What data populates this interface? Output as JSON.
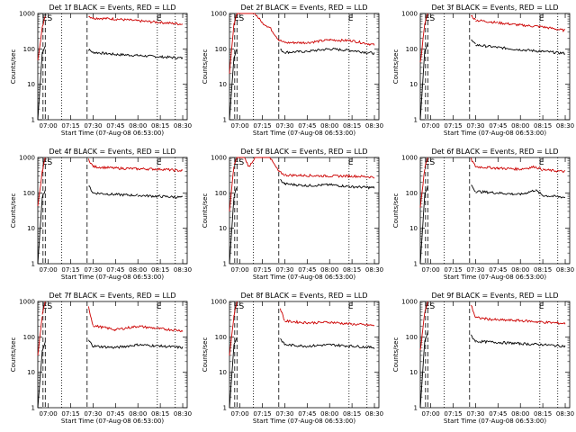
{
  "chart_data": {
    "type": "line",
    "shared": {
      "xlabel": "Start Time (07-Aug-08 06:53:00)",
      "ylabel": "Counts/sec",
      "y_scale": "log",
      "ylim": [
        1,
        1000
      ],
      "xlim": [
        "06:53",
        "08:33"
      ],
      "y_tick_labels": [
        "1",
        "10",
        "100",
        "1000"
      ],
      "x_tick_labels": [
        "07:00",
        "07:15",
        "07:30",
        "07:45",
        "08:00",
        "08:15",
        "08:30"
      ],
      "markers": [
        {
          "label": "ES",
          "time": "06:56:30",
          "style": "dashed"
        },
        {
          "label": "",
          "time": "06:58:00",
          "style": "dashed"
        },
        {
          "label": "",
          "time": "07:09:00",
          "style": "dotted"
        },
        {
          "label": "",
          "time": "07:26:00",
          "style": "dashed"
        },
        {
          "label": "E",
          "time": "08:13:00",
          "style": "dotted"
        },
        {
          "label": "",
          "time": "08:25:00",
          "style": "dotted"
        }
      ],
      "colors": {
        "events": "#000000",
        "lld": "#cc0000"
      }
    },
    "panels": [
      {
        "title": "Det 1f BLACK = Events, RED = LLD",
        "series": [
          {
            "key": "events",
            "time": [
              "06:53",
              "06:56",
              "06:58",
              "07:26",
              "07:27",
              "07:30",
              "07:45",
              "08:00",
              "08:15",
              "08:30"
            ],
            "values": [
              1,
              80,
              120,
              null,
              95,
              80,
              70,
              65,
              60,
              55
            ]
          },
          {
            "key": "lld",
            "time": [
              "06:53",
              "06:56",
              "06:58",
              "07:26",
              "07:27",
              "07:30",
              "07:45",
              "08:00",
              "08:15",
              "08:30"
            ],
            "values": [
              50,
              400,
              900,
              null,
              850,
              750,
              700,
              620,
              560,
              500
            ]
          }
        ]
      },
      {
        "title": "Det 2f BLACK = Events, RED = LLD",
        "series": [
          {
            "key": "events",
            "time": [
              "06:53",
              "06:56",
              "06:58",
              "07:26",
              "07:27",
              "07:30",
              "07:45",
              "08:00",
              "08:15",
              "08:30"
            ],
            "values": [
              1,
              60,
              100,
              null,
              95,
              80,
              85,
              100,
              90,
              75
            ]
          },
          {
            "key": "lld",
            "time": [
              "06:53",
              "06:56",
              "06:58",
              "07:03",
              "07:10",
              "07:15",
              "07:20",
              "07:26",
              "07:30",
              "07:45",
              "08:00",
              "08:15",
              "08:30"
            ],
            "values": [
              20,
              500,
              1000,
              1000,
              1000,
              550,
              400,
              180,
              150,
              150,
              180,
              170,
              130
            ]
          }
        ]
      },
      {
        "title": "Det 3f BLACK = Events, RED = LLD",
        "series": [
          {
            "key": "events",
            "time": [
              "06:53",
              "06:56",
              "06:58",
              "07:26",
              "07:27",
              "07:30",
              "07:45",
              "08:00",
              "08:15",
              "08:30"
            ],
            "values": [
              1,
              90,
              150,
              null,
              180,
              130,
              110,
              95,
              85,
              75
            ]
          },
          {
            "key": "lld",
            "time": [
              "06:53",
              "06:56",
              "06:58",
              "07:26",
              "07:27",
              "07:30",
              "07:45",
              "08:00",
              "08:15",
              "08:30"
            ],
            "values": [
              40,
              500,
              1000,
              null,
              900,
              650,
              550,
              470,
              420,
              330
            ]
          }
        ]
      },
      {
        "title": "Det 4f BLACK = Events, RED = LLD",
        "series": [
          {
            "key": "events",
            "time": [
              "06:53",
              "06:56",
              "06:58",
              "07:26",
              "07:27",
              "07:30",
              "07:45",
              "08:00",
              "08:15",
              "08:30"
            ],
            "values": [
              1,
              80,
              120,
              null,
              160,
              100,
              90,
              85,
              80,
              75
            ]
          },
          {
            "key": "lld",
            "time": [
              "06:53",
              "06:56",
              "06:58",
              "07:26",
              "07:27",
              "07:30",
              "07:45",
              "08:00",
              "08:15",
              "08:30"
            ],
            "values": [
              40,
              400,
              1000,
              null,
              900,
              550,
              500,
              480,
              470,
              420
            ]
          }
        ]
      },
      {
        "title": "Det 5f BLACK = Events, RED = LLD",
        "series": [
          {
            "key": "events",
            "time": [
              "06:53",
              "06:56",
              "06:58",
              "07:26",
              "07:27",
              "07:30",
              "07:45",
              "08:00",
              "08:15",
              "08:30"
            ],
            "values": [
              1,
              80,
              150,
              null,
              230,
              180,
              160,
              170,
              150,
              140
            ]
          },
          {
            "key": "lld",
            "time": [
              "06:53",
              "06:56",
              "06:58",
              "07:03",
              "07:06",
              "07:10",
              "07:20",
              "07:26",
              "07:30",
              "07:45",
              "08:00",
              "08:15",
              "08:30"
            ],
            "values": [
              30,
              600,
              1000,
              1000,
              550,
              1000,
              1000,
              400,
              320,
              310,
              300,
              300,
              280
            ]
          }
        ]
      },
      {
        "title": "Det 6f BLACK = Events, RED = LLD",
        "series": [
          {
            "key": "events",
            "time": [
              "06:53",
              "06:56",
              "06:58",
              "07:26",
              "07:27",
              "07:30",
              "07:45",
              "08:00",
              "08:10",
              "08:15",
              "08:30"
            ],
            "values": [
              1,
              90,
              150,
              null,
              170,
              110,
              100,
              90,
              120,
              85,
              75
            ]
          },
          {
            "key": "lld",
            "time": [
              "06:53",
              "06:56",
              "06:58",
              "07:26",
              "07:27",
              "07:30",
              "07:45",
              "08:00",
              "08:10",
              "08:15",
              "08:30"
            ],
            "values": [
              40,
              500,
              1000,
              null,
              900,
              550,
              500,
              470,
              550,
              450,
              400
            ]
          }
        ]
      },
      {
        "title": "Det 7f BLACK = Events, RED = LLD",
        "series": [
          {
            "key": "events",
            "time": [
              "06:53",
              "06:56",
              "06:58",
              "07:26",
              "07:27",
              "07:30",
              "07:45",
              "08:00",
              "08:15",
              "08:30"
            ],
            "values": [
              1,
              40,
              70,
              null,
              80,
              55,
              50,
              60,
              55,
              50
            ]
          },
          {
            "key": "lld",
            "time": [
              "06:53",
              "06:56",
              "06:58",
              "07:26",
              "07:27",
              "07:30",
              "07:45",
              "08:00",
              "08:15",
              "08:30"
            ],
            "values": [
              30,
              400,
              1000,
              null,
              700,
              210,
              160,
              200,
              170,
              150
            ]
          }
        ]
      },
      {
        "title": "Det 8f BLACK = Events, RED = LLD",
        "series": [
          {
            "key": "events",
            "time": [
              "06:53",
              "06:56",
              "06:58",
              "07:26",
              "07:27",
              "07:30",
              "07:45",
              "08:00",
              "08:15",
              "08:30"
            ],
            "values": [
              1,
              60,
              100,
              null,
              90,
              60,
              55,
              60,
              55,
              50
            ]
          },
          {
            "key": "lld",
            "time": [
              "06:53",
              "06:56",
              "06:58",
              "07:26",
              "07:27",
              "07:30",
              "07:45",
              "08:00",
              "08:15",
              "08:30"
            ],
            "values": [
              30,
              400,
              1000,
              null,
              650,
              280,
              250,
              260,
              230,
              210
            ]
          }
        ]
      },
      {
        "title": "Det 9f BLACK = Events, RED = LLD",
        "series": [
          {
            "key": "events",
            "time": [
              "06:53",
              "06:56",
              "06:58",
              "07:26",
              "07:27",
              "07:30",
              "07:45",
              "08:00",
              "08:15",
              "08:30"
            ],
            "values": [
              1,
              80,
              130,
              null,
              110,
              75,
              70,
              65,
              60,
              55
            ]
          },
          {
            "key": "lld",
            "time": [
              "06:53",
              "06:56",
              "06:58",
              "07:26",
              "07:27",
              "07:30",
              "07:45",
              "08:00",
              "08:15",
              "08:30"
            ],
            "values": [
              40,
              500,
              1000,
              null,
              800,
              350,
              300,
              290,
              260,
              240
            ]
          }
        ]
      }
    ]
  }
}
